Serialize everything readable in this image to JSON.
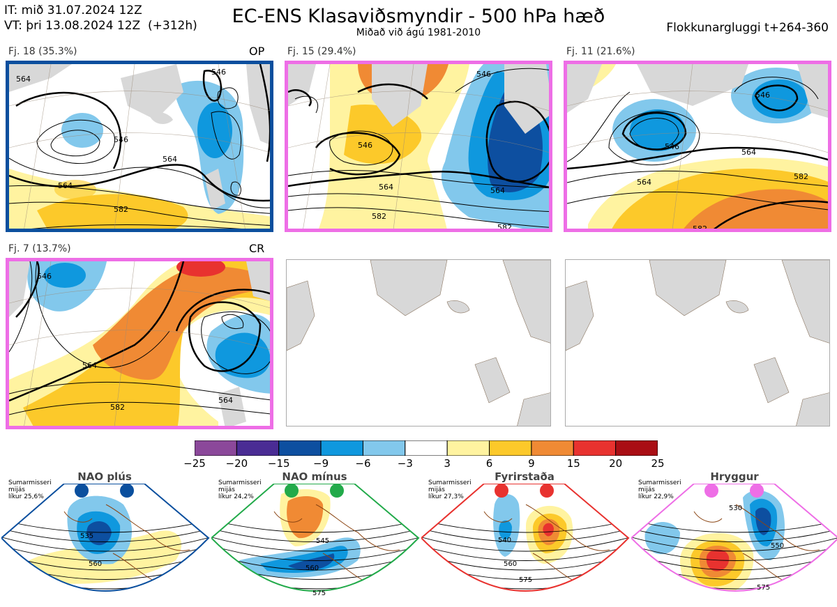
{
  "header": {
    "init_time": "IT: mið 31.07.2024 12Z",
    "valid_time": "VT: þri 13.08.2024 12Z",
    "lead": "(+312h)",
    "title": "EC-ENS Klasaviðsmyndir - 500 hPa hæð",
    "subtitle": "Miðað við ágú 1981-2010",
    "window": "Flokkunargluggi t+264-360"
  },
  "panels": [
    {
      "label": "Fj. 18 (35.3%)",
      "marker": "OP",
      "border": "#0a4f9e",
      "contours": [
        "546",
        "546",
        "564",
        "564",
        "582",
        "564"
      ]
    },
    {
      "label": "Fj. 15 (29.4%)",
      "marker": "",
      "border": "#ee6ee6",
      "contours": [
        "546",
        "564",
        "564",
        "582",
        "582",
        "546"
      ]
    },
    {
      "label": "Fj. 11 (21.6%)",
      "marker": "",
      "border": "#ee6ee6",
      "contours": [
        "546",
        "546",
        "564",
        "564",
        "582",
        "582"
      ]
    },
    {
      "label": "Fj. 7 (13.7%)",
      "marker": "CR",
      "border": "#ee6ee6",
      "contours": [
        "564",
        "564",
        "582",
        "546"
      ]
    }
  ],
  "colorbar": {
    "colors": [
      "#8b489a",
      "#4a2c94",
      "#0d4fa0",
      "#0f98de",
      "#82c8ec",
      "#ffffff",
      "#fff3a0",
      "#fcc92a",
      "#f08a34",
      "#e8322f",
      "#a90e14"
    ],
    "labels": [
      "−25",
      "−20",
      "−15",
      "−9",
      "−6",
      "−3",
      "3",
      "6",
      "9",
      "15",
      "20",
      "25"
    ]
  },
  "regimes": [
    {
      "name": "NAO plús",
      "season": "Sumarmisseri",
      "mean": "mijás",
      "prob": "líkur 25,6%",
      "color": "#0a4f9e",
      "contours": [
        "535",
        "560"
      ]
    },
    {
      "name": "NAO mínus",
      "season": "Sumarmisseri",
      "mean": "mijás",
      "prob": "líkur 24,2%",
      "color": "#22aa4a",
      "contours": [
        "545",
        "560",
        "575"
      ]
    },
    {
      "name": "Fyrirstaða",
      "season": "Sumarmisseri",
      "mean": "mijás",
      "prob": "líkur 27,3%",
      "color": "#e8322f",
      "contours": [
        "540",
        "560",
        "575"
      ]
    },
    {
      "name": "Hryggur",
      "season": "Sumarmisseri",
      "mean": "mijás",
      "prob": "líkur 22,9%",
      "color": "#ee6ee6",
      "contours": [
        "530",
        "550",
        "575"
      ]
    }
  ]
}
